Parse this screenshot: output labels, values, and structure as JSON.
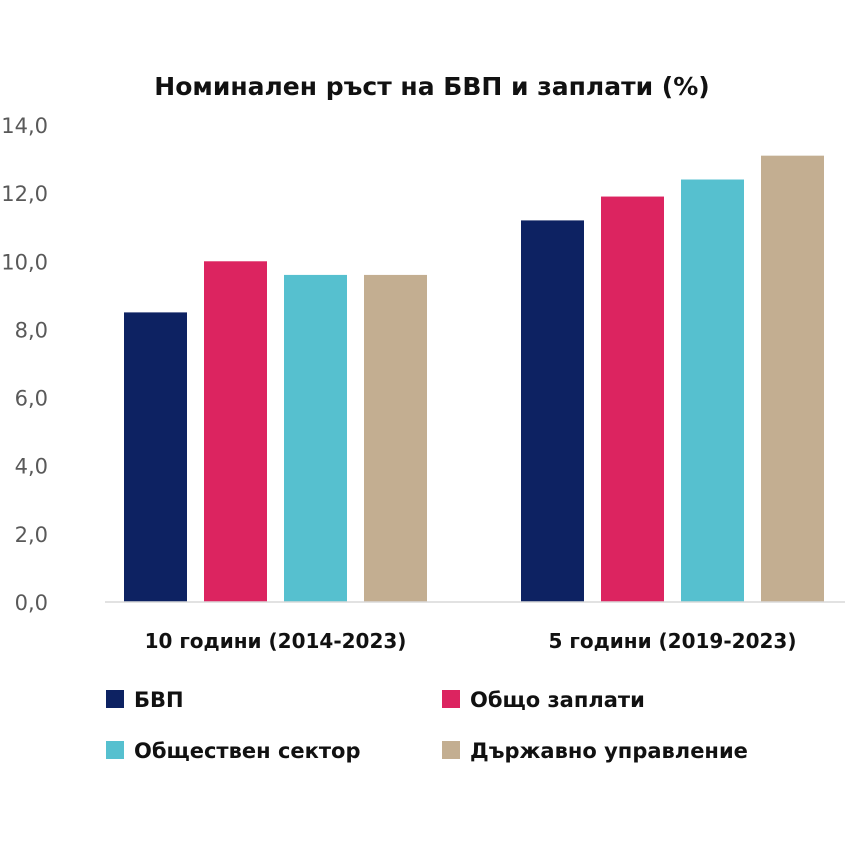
{
  "chart_data": {
    "type": "bar",
    "title": "Номинален ръст на БВП и заплати (%)",
    "xlabel": "",
    "ylabel": "",
    "ylim": [
      0,
      14
    ],
    "yticks": [
      "0,0",
      "2,0",
      "4,0",
      "6,0",
      "8,0",
      "10,0",
      "12,0",
      "14,0"
    ],
    "grid": false,
    "legend_position": "bottom",
    "categories": [
      "10 години (2014-2023)",
      "5 години (2019-2023)"
    ],
    "series": [
      {
        "name": "БВП",
        "color": "#0d2262",
        "values": [
          8.5,
          11.2
        ]
      },
      {
        "name": "Общо заплати",
        "color": "#dc2460",
        "values": [
          10.0,
          11.9
        ]
      },
      {
        "name": "Обществен сектор",
        "color": "#56c0cf",
        "values": [
          9.6,
          12.4
        ]
      },
      {
        "name": "Държавно управление",
        "color": "#c3ae91",
        "values": [
          9.6,
          13.1
        ]
      }
    ]
  }
}
